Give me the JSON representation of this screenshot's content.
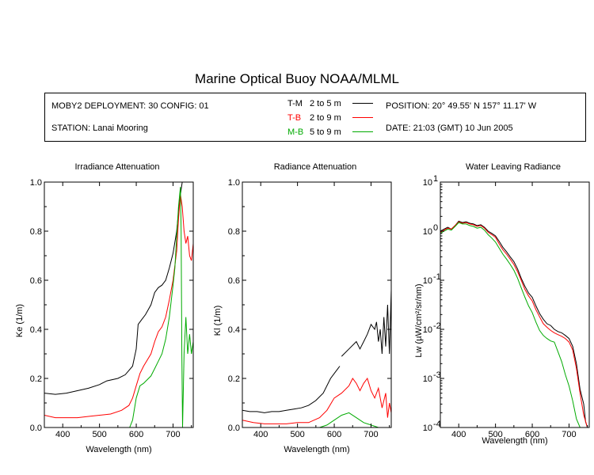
{
  "title": "Marine Optical Buoy NOAA/MLML",
  "info": {
    "deployment": "MOBY2 DEPLOYMENT: 30 CONFIG: 01",
    "station": "STATION: Lanai Mooring",
    "position": "POSITION: 20° 49.55' N   157° 11.17' W",
    "date": "DATE: 21:03 (GMT) 10 Jun 2005",
    "legend": [
      {
        "code": "T-M",
        "range": "2 to 5  m",
        "color": "#000000"
      },
      {
        "code": "T-B",
        "range": "2 to 9  m",
        "color": "#ff0000"
      },
      {
        "code": "M-B",
        "range": "5 to 9  m",
        "color": "#00aa00"
      }
    ]
  },
  "chart_data": [
    {
      "type": "line",
      "title": "Irradiance Attenuation",
      "xlabel": "Wavelength (nm)",
      "ylabel": "Ke  (1/m)",
      "xlim": [
        350,
        755
      ],
      "ylim": [
        0,
        1.0
      ],
      "xticks": [
        400,
        500,
        600,
        700
      ],
      "yticks": [
        "0.0",
        "0.2",
        "0.4",
        "0.6",
        "0.8",
        "1.0"
      ],
      "series": [
        {
          "color": "#000000",
          "x": [
            350,
            380,
            410,
            440,
            470,
            500,
            520,
            550,
            570,
            590,
            600,
            605,
            615,
            625,
            640,
            650,
            660,
            670,
            680,
            690,
            700,
            710,
            715,
            720,
            725
          ],
          "y": [
            0.14,
            0.135,
            0.14,
            0.15,
            0.16,
            0.175,
            0.19,
            0.2,
            0.215,
            0.25,
            0.32,
            0.42,
            0.44,
            0.46,
            0.5,
            0.55,
            0.57,
            0.58,
            0.6,
            0.65,
            0.71,
            0.8,
            0.88,
            0.95,
            1.0
          ]
        },
        {
          "color": "#ff0000",
          "x": [
            350,
            380,
            410,
            440,
            470,
            500,
            530,
            560,
            580,
            590,
            600,
            610,
            620,
            640,
            650,
            660,
            670,
            680,
            690,
            700,
            710,
            715,
            720,
            725,
            730,
            735,
            740,
            745,
            750,
            755
          ],
          "y": [
            0.05,
            0.04,
            0.04,
            0.04,
            0.045,
            0.05,
            0.055,
            0.07,
            0.09,
            0.12,
            0.17,
            0.22,
            0.25,
            0.3,
            0.35,
            0.39,
            0.41,
            0.45,
            0.52,
            0.6,
            0.72,
            0.85,
            0.95,
            0.9,
            0.8,
            0.75,
            0.78,
            0.7,
            0.68,
            0.75
          ]
        },
        {
          "color": "#00aa00",
          "x": [
            582,
            590,
            600,
            610,
            620,
            640,
            650,
            660,
            670,
            680,
            690,
            700,
            705,
            710,
            715,
            720,
            722,
            724,
            726,
            730,
            735,
            740,
            745,
            750,
            755
          ],
          "y": [
            0.0,
            0.03,
            0.12,
            0.17,
            0.18,
            0.21,
            0.24,
            0.27,
            0.3,
            0.36,
            0.45,
            0.58,
            0.65,
            0.78,
            0.9,
            0.98,
            0.8,
            0.3,
            0.0,
            0.3,
            0.45,
            0.3,
            0.38,
            0.3,
            0.35
          ]
        }
      ]
    },
    {
      "type": "line",
      "title": "Radiance Attenuation",
      "xlabel": "Wavelength (nm)",
      "ylabel": "Kl  (1/m)",
      "xlim": [
        350,
        755
      ],
      "ylim": [
        0,
        1.0
      ],
      "xticks": [
        400,
        500,
        600,
        700
      ],
      "yticks": [
        "0.0",
        "0.2",
        "0.4",
        "0.6",
        "0.8",
        "1.0"
      ],
      "series": [
        {
          "color": "#000000",
          "x": [
            350,
            370,
            390,
            410,
            430,
            450,
            470,
            490,
            510,
            530,
            550,
            570,
            590,
            600,
            610,
            615
          ],
          "y": [
            0.07,
            0.065,
            0.065,
            0.06,
            0.065,
            0.065,
            0.07,
            0.075,
            0.08,
            0.09,
            0.11,
            0.14,
            0.2,
            0.22,
            0.24,
            0.25
          ]
        },
        {
          "color": "#000000",
          "x": [
            620,
            640,
            660,
            670,
            680,
            690,
            700,
            710,
            715,
            720,
            725,
            730,
            735,
            740,
            745,
            750,
            755
          ],
          "y": [
            0.29,
            0.32,
            0.35,
            0.32,
            0.35,
            0.38,
            0.42,
            0.4,
            0.43,
            0.35,
            0.4,
            0.3,
            0.45,
            0.33,
            0.5,
            0.3,
            0.56
          ]
        },
        {
          "color": "#ff0000",
          "x": [
            350,
            380,
            410,
            440,
            470,
            500,
            530,
            560,
            580,
            600,
            620,
            640,
            650,
            660,
            670,
            680,
            690,
            700,
            710,
            720,
            730,
            740,
            745,
            750,
            755
          ],
          "y": [
            0.03,
            0.02,
            0.015,
            0.015,
            0.015,
            0.02,
            0.02,
            0.04,
            0.07,
            0.12,
            0.14,
            0.17,
            0.2,
            0.18,
            0.15,
            0.18,
            0.2,
            0.15,
            0.12,
            0.16,
            0.08,
            0.14,
            0.04,
            0.1,
            0.06
          ]
        },
        {
          "color": "#00aa00",
          "x": [
            350,
            380,
            410,
            440,
            470,
            500,
            530,
            560,
            580,
            600,
            620,
            640,
            660,
            680,
            700,
            720,
            740,
            755
          ],
          "y": [
            0.0,
            0.0,
            0.0,
            0.0,
            0.0,
            0.0,
            0.0,
            0.0,
            0.01,
            0.03,
            0.05,
            0.06,
            0.04,
            0.02,
            0.01,
            0.0,
            0.0,
            0.0
          ]
        }
      ]
    },
    {
      "type": "line",
      "title": "Water Leaving Radiance",
      "xlabel": "Wavelength (nm)",
      "ylabel": "Lw  (µW/cm²/sr/nm)",
      "xscale": "linear",
      "yscale": "log",
      "xlim": [
        350,
        755
      ],
      "ylim": [
        0.0001,
        10
      ],
      "xticks": [
        400,
        500,
        600,
        700
      ],
      "yticks": [
        {
          "base": "10",
          "exp": "1"
        },
        {
          "base": "10",
          "exp": "0"
        },
        {
          "base": "10",
          "exp": "-1"
        },
        {
          "base": "10",
          "exp": "-2"
        },
        {
          "base": "10",
          "exp": "-3"
        },
        {
          "base": "10",
          "exp": "-4"
        }
      ],
      "series": [
        {
          "color": "#000000",
          "x": [
            350,
            360,
            370,
            380,
            390,
            400,
            410,
            420,
            430,
            440,
            450,
            460,
            470,
            480,
            490,
            500,
            510,
            520,
            530,
            540,
            550,
            560,
            570,
            580,
            590,
            600,
            610,
            620,
            630,
            640,
            650,
            660,
            670,
            680,
            690,
            700,
            710,
            720,
            730,
            740,
            745,
            750,
            755
          ],
          "y": [
            1.0,
            1.1,
            1.2,
            1.1,
            1.3,
            1.6,
            1.5,
            1.55,
            1.45,
            1.4,
            1.3,
            1.35,
            1.2,
            1.0,
            0.9,
            0.8,
            0.62,
            0.47,
            0.38,
            0.3,
            0.24,
            0.17,
            0.11,
            0.075,
            0.055,
            0.045,
            0.03,
            0.021,
            0.016,
            0.013,
            0.012,
            0.01,
            0.009,
            0.0085,
            0.0075,
            0.0065,
            0.0045,
            0.002,
            0.0006,
            0.0003,
            0.00013,
            0.0001,
            0.0001
          ]
        },
        {
          "color": "#ff0000",
          "x": [
            350,
            360,
            370,
            380,
            390,
            400,
            410,
            420,
            430,
            440,
            450,
            460,
            470,
            480,
            490,
            500,
            510,
            520,
            530,
            540,
            550,
            560,
            570,
            580,
            590,
            600,
            610,
            620,
            630,
            640,
            650,
            660,
            670,
            680,
            690,
            700,
            710,
            720,
            730,
            740,
            750
          ],
          "y": [
            0.95,
            1.05,
            1.15,
            1.1,
            1.3,
            1.55,
            1.45,
            1.5,
            1.4,
            1.35,
            1.25,
            1.3,
            1.15,
            0.95,
            0.85,
            0.75,
            0.55,
            0.42,
            0.34,
            0.27,
            0.21,
            0.15,
            0.1,
            0.065,
            0.048,
            0.038,
            0.025,
            0.018,
            0.013,
            0.011,
            0.0095,
            0.0085,
            0.0078,
            0.0072,
            0.0065,
            0.0055,
            0.0038,
            0.0016,
            0.0005,
            0.00018,
            0.0001
          ]
        },
        {
          "color": "#00aa00",
          "x": [
            350,
            360,
            370,
            380,
            390,
            400,
            410,
            420,
            430,
            440,
            450,
            460,
            470,
            480,
            490,
            500,
            510,
            520,
            530,
            540,
            550,
            560,
            570,
            580,
            590,
            600,
            610,
            620,
            630,
            640,
            650,
            660,
            670,
            680,
            690,
            700,
            710,
            720,
            730
          ],
          "y": [
            0.9,
            1.0,
            1.1,
            1.05,
            1.25,
            1.5,
            1.4,
            1.4,
            1.3,
            1.25,
            1.15,
            1.2,
            1.05,
            0.85,
            0.72,
            0.6,
            0.45,
            0.34,
            0.27,
            0.21,
            0.16,
            0.11,
            0.07,
            0.045,
            0.03,
            0.022,
            0.014,
            0.0095,
            0.0075,
            0.0065,
            0.0058,
            0.0055,
            0.0035,
            0.0022,
            0.0012,
            0.0007,
            0.00035,
            0.00015,
            0.0001
          ]
        }
      ]
    }
  ]
}
